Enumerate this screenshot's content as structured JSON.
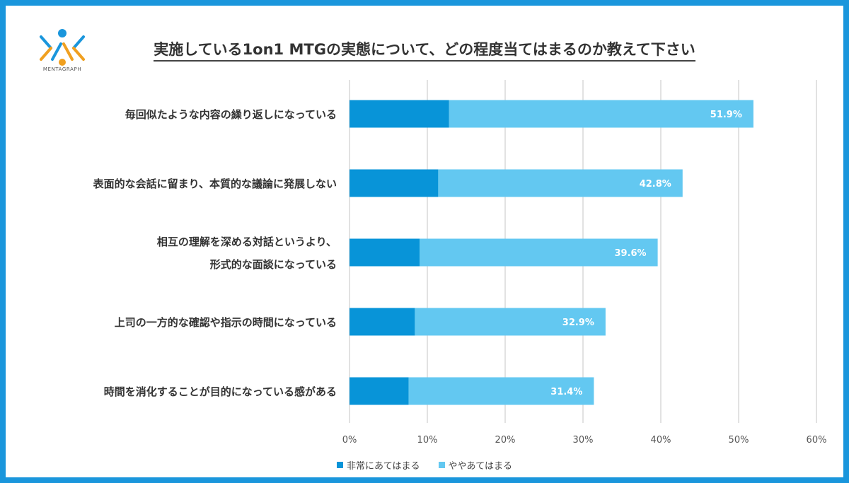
{
  "logo": {
    "name": "MENTAGRAPH"
  },
  "colors": {
    "strong": "#0894d8",
    "somewhat": "#63c8f1",
    "grid": "#d9d9d9",
    "frame": "#1a96dc"
  },
  "chart_data": {
    "type": "bar",
    "orientation": "horizontal",
    "stacked": true,
    "title": "実施している1on1 MTGの実態について、どの程度当てはまるのか教えて下さい",
    "categories": [
      [
        "毎回似たような内容の繰り返しになっている"
      ],
      [
        "表面的な会話に留まり、本質的な議論に発展しない"
      ],
      [
        "相互の理解を深める対話というより、",
        "形式的な面談になっている"
      ],
      [
        "上司の一方的な確認や指示の時間になっている"
      ],
      [
        "時間を消化することが目的になっている感がある"
      ]
    ],
    "series": [
      {
        "name": "非常にあてはまる",
        "values": [
          12.8,
          11.4,
          9.0,
          8.4,
          7.6
        ]
      },
      {
        "name": "ややあてはまる",
        "values": [
          39.1,
          31.4,
          30.6,
          24.5,
          23.8
        ]
      }
    ],
    "totals": [
      "51.9%",
      "42.8%",
      "39.6%",
      "32.9%",
      "31.4%"
    ],
    "xlim": [
      0,
      60
    ],
    "xticks": [
      "0%",
      "10%",
      "20%",
      "30%",
      "40%",
      "50%",
      "60%"
    ],
    "grid": true,
    "legend_position": "bottom"
  }
}
